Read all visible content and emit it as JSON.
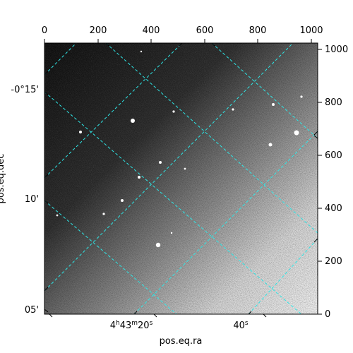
{
  "figure": {
    "x_axis_title": "pos.eq.ra",
    "y_axis_title": "pos.eq.dec",
    "top_ticks": [
      "0",
      "200",
      "400",
      "600",
      "800",
      "1000"
    ],
    "right_ticks": [
      "0",
      "200",
      "400",
      "600",
      "800",
      "1000"
    ],
    "ra_ticks": [
      {
        "label": "4h43m20s",
        "h": "4",
        "m": "43",
        "s": "20"
      },
      {
        "label": "40s",
        "s": "40"
      }
    ],
    "dec_ticks": [
      "-0°15'",
      "10'",
      "05'"
    ],
    "grid_color": "#2ee6e6",
    "image_colormap": "grayscale"
  }
}
